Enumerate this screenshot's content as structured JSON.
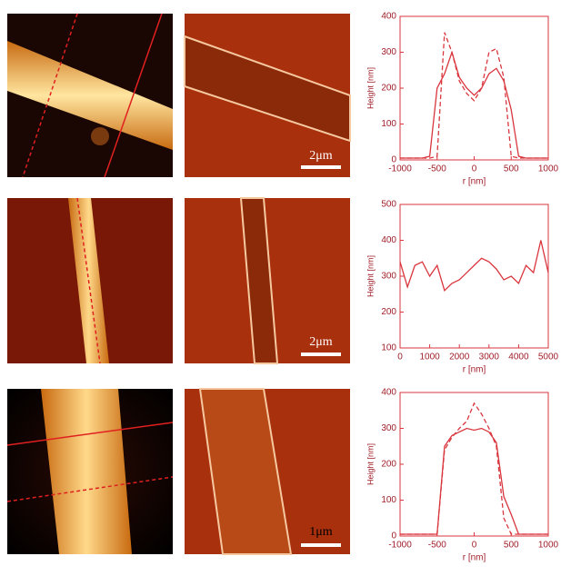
{
  "chart_data": [
    {
      "type": "line",
      "xlabel": "r [nm]",
      "ylabel": "Height [nm]",
      "x": [
        -1000,
        -900,
        -800,
        -700,
        -600,
        -500,
        -400,
        -300,
        -200,
        -100,
        0,
        100,
        200,
        300,
        400,
        500,
        600,
        700,
        800,
        900,
        1000
      ],
      "series": [
        {
          "color": "#d9363e",
          "linestyle": "solid",
          "values": [
            5,
            5,
            5,
            5,
            10,
            200,
            240,
            300,
            230,
            200,
            180,
            200,
            240,
            255,
            220,
            140,
            10,
            5,
            5,
            5,
            5
          ]
        },
        {
          "color": "#d9363e",
          "linestyle": "dashed",
          "values": [
            5,
            5,
            5,
            5,
            5,
            10,
            355,
            300,
            220,
            185,
            165,
            200,
            300,
            310,
            230,
            10,
            5,
            5,
            5,
            5,
            5
          ]
        }
      ],
      "xlim": [
        -1000,
        1000
      ],
      "xticks": [
        -1000,
        -500,
        0,
        500,
        1000
      ],
      "ylim": [
        0,
        400
      ],
      "yticks": [
        0,
        100,
        200,
        300,
        400
      ]
    },
    {
      "type": "line",
      "xlabel": "r [nm]",
      "ylabel": "Height [nm]",
      "x": [
        0,
        250,
        500,
        750,
        1000,
        1250,
        1500,
        1750,
        2000,
        2250,
        2500,
        2750,
        3000,
        3250,
        3500,
        3750,
        4000,
        4250,
        4500,
        4750,
        5000
      ],
      "series": [
        {
          "color": "#d9363e",
          "linestyle": "solid",
          "values": [
            340,
            270,
            330,
            340,
            300,
            330,
            260,
            280,
            290,
            310,
            330,
            350,
            340,
            320,
            290,
            300,
            280,
            330,
            310,
            400,
            310
          ]
        }
      ],
      "xlim": [
        0,
        5000
      ],
      "xticks": [
        0,
        1000,
        2000,
        3000,
        4000,
        5000
      ],
      "ylim": [
        100,
        500
      ],
      "yticks": [
        100,
        200,
        300,
        400,
        500
      ]
    },
    {
      "type": "line",
      "xlabel": "r [nm]",
      "ylabel": "Height [nm]",
      "x": [
        -1000,
        -900,
        -800,
        -700,
        -600,
        -500,
        -400,
        -300,
        -200,
        -100,
        0,
        100,
        200,
        300,
        400,
        500,
        600,
        700,
        800,
        900,
        1000
      ],
      "series": [
        {
          "color": "#d9363e",
          "linestyle": "solid",
          "values": [
            5,
            5,
            5,
            5,
            5,
            5,
            250,
            280,
            290,
            300,
            295,
            300,
            290,
            260,
            110,
            60,
            5,
            5,
            5,
            5,
            5
          ]
        },
        {
          "color": "#d9363e",
          "linestyle": "dashed",
          "values": [
            5,
            5,
            5,
            5,
            5,
            5,
            240,
            275,
            300,
            320,
            370,
            340,
            300,
            250,
            50,
            5,
            5,
            5,
            5,
            5,
            5
          ]
        }
      ],
      "xlim": [
        -1000,
        1000
      ],
      "xticks": [
        -1000,
        -500,
        0,
        500,
        1000
      ],
      "ylim": [
        0,
        400
      ],
      "yticks": [
        0,
        100,
        200,
        300,
        400
      ]
    }
  ],
  "scale_bars": [
    "2μm",
    "2μm",
    "1μm"
  ]
}
